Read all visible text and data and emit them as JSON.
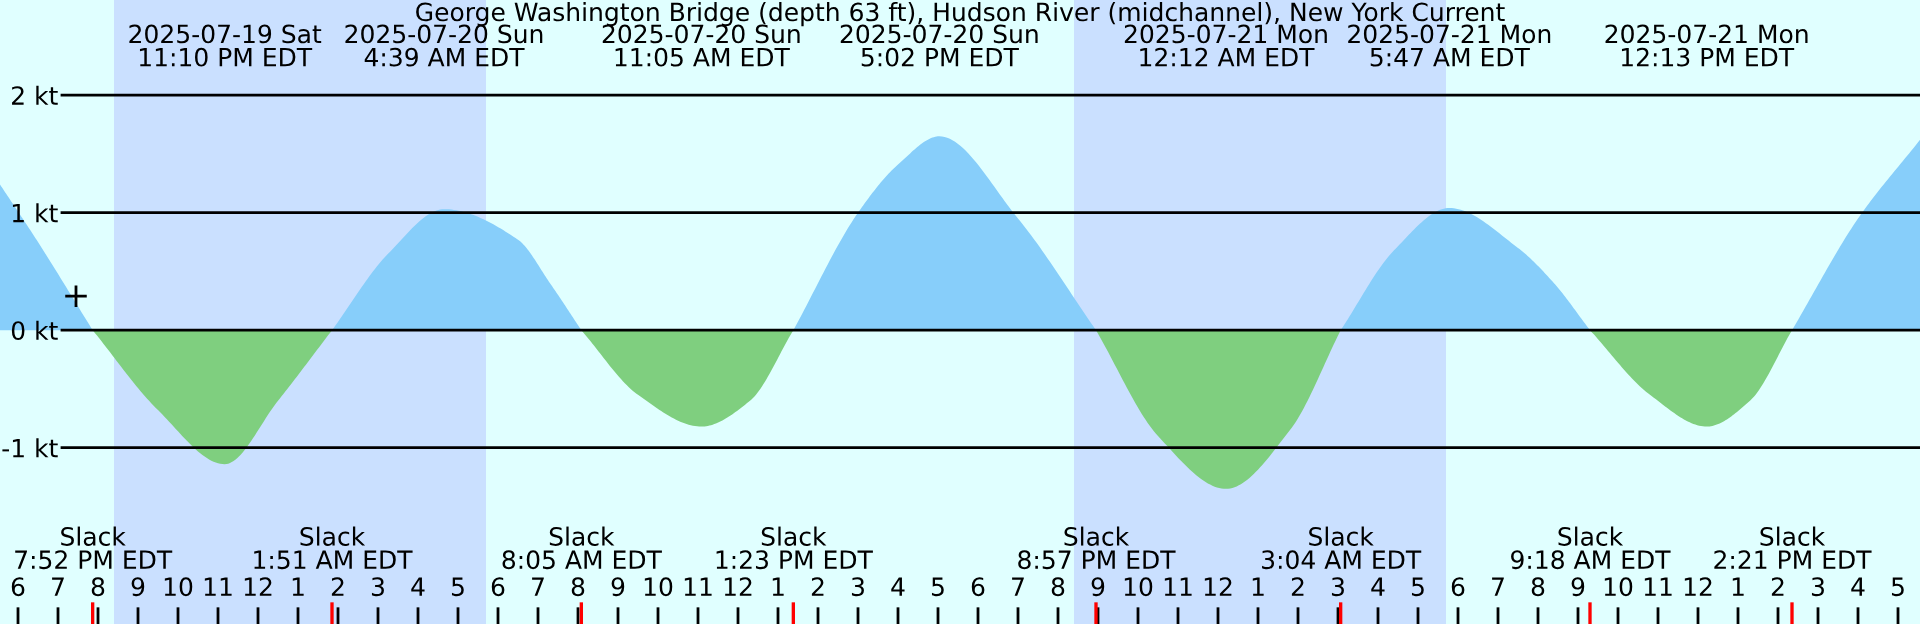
{
  "chart_data": {
    "type": "area",
    "title": "George Washington Bridge (depth 63 ft), Hudson River (midchannel), New York Current",
    "xlim": [
      "2025-07-19T17:33",
      "2025-07-21T17:33"
    ],
    "ylim": [
      -2.5,
      2.81
    ],
    "yticks": [
      {
        "value": -1,
        "label": "-1 kt"
      },
      {
        "value": 0,
        "label": "0 kt"
      },
      {
        "value": 1,
        "label": "1 kt"
      },
      {
        "value": 2,
        "label": "2 kt"
      }
    ],
    "xticks": [
      {
        "value": "2025-07-19T18:00",
        "label": "6"
      },
      {
        "value": "2025-07-19T19:00",
        "label": "7"
      },
      {
        "value": "2025-07-19T20:00",
        "label": "8"
      },
      {
        "value": "2025-07-19T21:00",
        "label": "9"
      },
      {
        "value": "2025-07-19T22:00",
        "label": "10"
      },
      {
        "value": "2025-07-19T23:00",
        "label": "11"
      },
      {
        "value": "2025-07-20T00:00",
        "label": "12"
      },
      {
        "value": "2025-07-20T01:00",
        "label": "1"
      },
      {
        "value": "2025-07-20T02:00",
        "label": "2"
      },
      {
        "value": "2025-07-20T03:00",
        "label": "3"
      },
      {
        "value": "2025-07-20T04:00",
        "label": "4"
      },
      {
        "value": "2025-07-20T05:00",
        "label": "5"
      },
      {
        "value": "2025-07-20T06:00",
        "label": "6"
      },
      {
        "value": "2025-07-20T07:00",
        "label": "7"
      },
      {
        "value": "2025-07-20T08:00",
        "label": "8"
      },
      {
        "value": "2025-07-20T09:00",
        "label": "9"
      },
      {
        "value": "2025-07-20T10:00",
        "label": "10"
      },
      {
        "value": "2025-07-20T11:00",
        "label": "11"
      },
      {
        "value": "2025-07-20T12:00",
        "label": "12"
      },
      {
        "value": "2025-07-20T13:00",
        "label": "1"
      },
      {
        "value": "2025-07-20T14:00",
        "label": "2"
      },
      {
        "value": "2025-07-20T15:00",
        "label": "3"
      },
      {
        "value": "2025-07-20T16:00",
        "label": "4"
      },
      {
        "value": "2025-07-20T17:00",
        "label": "5"
      },
      {
        "value": "2025-07-20T18:00",
        "label": "6"
      },
      {
        "value": "2025-07-20T19:00",
        "label": "7"
      },
      {
        "value": "2025-07-20T20:00",
        "label": "8"
      },
      {
        "value": "2025-07-20T21:00",
        "label": "9"
      },
      {
        "value": "2025-07-20T22:00",
        "label": "10"
      },
      {
        "value": "2025-07-20T23:00",
        "label": "11"
      },
      {
        "value": "2025-07-21T00:00",
        "label": "12"
      },
      {
        "value": "2025-07-21T01:00",
        "label": "1"
      },
      {
        "value": "2025-07-21T02:00",
        "label": "2"
      },
      {
        "value": "2025-07-21T03:00",
        "label": "3"
      },
      {
        "value": "2025-07-21T04:00",
        "label": "4"
      },
      {
        "value": "2025-07-21T05:00",
        "label": "5"
      },
      {
        "value": "2025-07-21T06:00",
        "label": "6"
      },
      {
        "value": "2025-07-21T07:00",
        "label": "7"
      },
      {
        "value": "2025-07-21T08:00",
        "label": "8"
      },
      {
        "value": "2025-07-21T09:00",
        "label": "9"
      },
      {
        "value": "2025-07-21T10:00",
        "label": "10"
      },
      {
        "value": "2025-07-21T11:00",
        "label": "11"
      },
      {
        "value": "2025-07-21T12:00",
        "label": "12"
      },
      {
        "value": "2025-07-21T13:00",
        "label": "1"
      },
      {
        "value": "2025-07-21T14:00",
        "label": "2"
      },
      {
        "value": "2025-07-21T15:00",
        "label": "3"
      },
      {
        "value": "2025-07-21T16:00",
        "label": "4"
      },
      {
        "value": "2025-07-21T17:00",
        "label": "5"
      }
    ],
    "grid": "y",
    "legend": false,
    "x": [
      "2025-07-19T17:33",
      "2025-07-19T18:30",
      "2025-07-19T19:52",
      "2025-07-19T21:30",
      "2025-07-19T23:10",
      "2025-07-20T00:30",
      "2025-07-20T01:51",
      "2025-07-20T03:15",
      "2025-07-20T04:39",
      "2025-07-20T06:30",
      "2025-07-20T07:18",
      "2025-07-20T08:05",
      "2025-07-20T09:30",
      "2025-07-20T11:05",
      "2025-07-20T12:18",
      "2025-07-20T13:23",
      "2025-07-20T15:00",
      "2025-07-20T16:00",
      "2025-07-20T17:02",
      "2025-07-20T19:00",
      "2025-07-20T20:57",
      "2025-07-20T22:30",
      "2025-07-21T00:12",
      "2025-07-21T01:48",
      "2025-07-21T03:04",
      "2025-07-21T04:24",
      "2025-07-21T05:47",
      "2025-07-21T07:30",
      "2025-07-21T08:24",
      "2025-07-21T09:18",
      "2025-07-21T10:48",
      "2025-07-21T12:13",
      "2025-07-21T13:18",
      "2025-07-21T14:21",
      "2025-07-21T16:00",
      "2025-07-21T17:33"
    ],
    "series": [
      {
        "color": "#87cefa",
        "values": [
          1.24,
          0.75,
          0,
          null,
          null,
          null,
          0,
          0.65,
          1.03,
          0.77,
          0.4,
          0,
          null,
          null,
          null,
          0,
          1.0,
          1.41,
          1.65,
          0.95,
          0,
          null,
          null,
          null,
          0,
          0.68,
          1.04,
          0.7,
          0.4,
          0,
          null,
          null,
          null,
          0,
          0.95,
          1.62
        ]
      },
      {
        "color": "#7fcf7f",
        "values": [
          null,
          null,
          0,
          -0.68,
          -1.14,
          -0.6,
          0,
          null,
          null,
          null,
          null,
          0,
          -0.55,
          -0.82,
          -0.6,
          0,
          null,
          null,
          null,
          null,
          0,
          -0.9,
          -1.35,
          -0.85,
          0,
          null,
          null,
          null,
          null,
          0,
          -0.55,
          -0.82,
          -0.6,
          0,
          null,
          null
        ]
      },
      {
        "type": "scatter",
        "marker": "cross",
        "color": "#000000",
        "x": [
          "2025-07-19T19:27"
        ],
        "values": [
          0.29
        ]
      }
    ],
    "bands": [
      {
        "axis": "x",
        "from": "2025-07-19T20:24",
        "to": "2025-07-20T05:42",
        "color": "#cae0ff"
      },
      {
        "axis": "x",
        "from": "2025-07-20T20:24",
        "to": "2025-07-21T05:42",
        "color": "#cae0ff"
      }
    ],
    "annotations": [
      "2025-07-19 Sat\n11:10 PM EDT",
      "2025-07-20 Sun\n4:39 AM EDT",
      "2025-07-20 Sun\n11:05 AM EDT",
      "2025-07-20 Sun\n5:02 PM EDT",
      "2025-07-21 Mon\n12:12 AM EDT",
      "2025-07-21 Mon\n5:47 AM EDT",
      "2025-07-21 Mon\n12:13 PM EDT",
      "Slack\n7:52 PM EDT",
      "Slack\n1:51 AM EDT",
      "Slack\n8:05 AM EDT",
      "Slack\n1:23 PM EDT",
      "Slack\n8:57 PM EDT",
      "Slack\n3:04 AM EDT",
      "Slack\n9:18 AM EDT",
      "Slack\n2:21 PM EDT"
    ]
  }
}
